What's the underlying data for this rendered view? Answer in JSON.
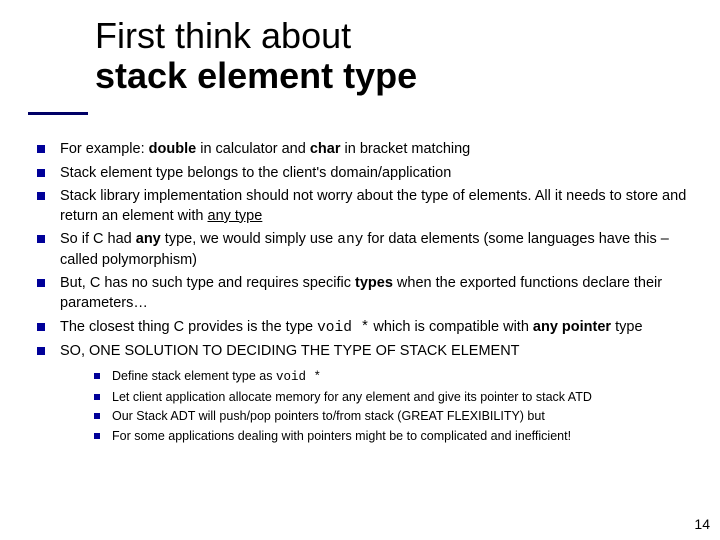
{
  "title": {
    "line1": "First think about",
    "line2": "stack element type"
  },
  "bullets": [
    {
      "html": "For example: <span class='b'>double</span> in calculator and <span class='b'>char</span> in bracket matching"
    },
    {
      "html": "Stack element type belongs to the client's domain/application"
    },
    {
      "html": "Stack library implementation should not worry about the type of elements.  All it needs to store and return an element with <span class='u'>any type</span>"
    },
    {
      "html": "So if C had <span class='b'>any</span> type, we would simply use <span class='mono'>any</span> for data elements (some languages have this – called polymorphism)"
    },
    {
      "html": "But, C has no such type and requires specific <span class='b'>types</span> when the exported functions declare their parameters…"
    },
    {
      "html": "The closest thing C provides is the type <span class='mono'>void *</span> which is compatible with <span class='b'>any pointer</span> type"
    },
    {
      "html": "SO, ONE SOLUTION TO DECIDING THE TYPE OF STACK ELEMENT",
      "sub": [
        {
          "html": "Define stack element type as <span class='mono'>void *</span>"
        },
        {
          "html": "Let client application allocate memory for any element and give its pointer to stack ATD"
        },
        {
          "html": "Our Stack ADT will push/pop pointers to/from stack (GREAT FLEXIBILITY) but"
        },
        {
          "html": "For some applications dealing with pointers might be to complicated and inefficient!"
        }
      ]
    }
  ],
  "pageNumber": "14",
  "colors": {
    "bullet": "#000099",
    "underline": "#000066",
    "text": "#000000",
    "background": "#ffffff"
  }
}
